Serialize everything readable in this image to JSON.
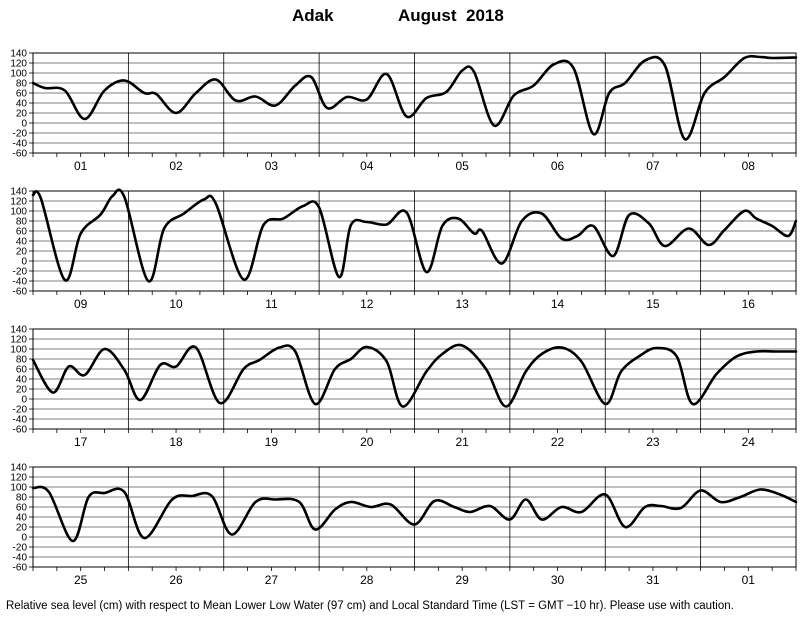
{
  "title": {
    "station": "Adak",
    "period": "August  2018"
  },
  "footnote": "Relative sea level (cm) with respect to Mean Lower Low Water (97 cm) and Local Standard Time (LST = GMT −10 hr). Please use with caution.",
  "chart_data": {
    "type": "line",
    "ylabel": "Relative sea level (cm)",
    "ylim": [
      -60,
      140
    ],
    "yticks": [
      140,
      120,
      100,
      80,
      60,
      40,
      20,
      0,
      -20,
      -40,
      -60
    ],
    "grid": true,
    "x_unit": "hours (LST)",
    "panels": [
      {
        "days": [
          "01",
          "02",
          "03",
          "04",
          "05",
          "06",
          "07",
          "08"
        ],
        "series": [
          {
            "x": [
              0,
              3,
              8,
              13,
              18,
              23,
              28,
              31,
              36,
              41,
              46,
              51,
              56,
              61,
              66,
              70,
              74,
              79,
              84,
              89,
              94,
              99,
              104,
              108,
              111,
              116,
              121,
              126,
              131,
              136,
              141,
              145,
              149,
              154,
              159,
              164,
              169,
              174,
              179,
              183,
              186,
              192
            ],
            "y": [
              80,
              70,
              65,
              8,
              65,
              85,
              60,
              58,
              20,
              60,
              87,
              45,
              53,
              35,
              75,
              92,
              30,
              52,
              47,
              98,
              13,
              50,
              62,
              105,
              102,
              -5,
              55,
              75,
              117,
              110,
              -22,
              60,
              80,
              125,
              115,
              -32,
              60,
              92,
              130,
              132,
              130,
              131
            ]
          }
        ]
      },
      {
        "days": [
          "09",
          "10",
          "11",
          "12",
          "13",
          "14",
          "15",
          "16"
        ],
        "series": [
          {
            "x": [
              0,
              2,
              8,
              12,
              17,
              20,
              23,
              29,
              33,
              38,
              43,
              46,
              53,
              58,
              63,
              68,
              72,
              77,
              80,
              84,
              89,
              94,
              99,
              103,
              107,
              111,
              113,
              118,
              123,
              128,
              133,
              137,
              141,
              146,
              150,
              155,
              159,
              165,
              170,
              174,
              179,
              182,
              186,
              190,
              192
            ],
            "y": [
              132,
              125,
              -38,
              55,
              93,
              130,
              128,
              -40,
              65,
              95,
              123,
              115,
              -37,
              72,
              85,
              110,
              107,
              -32,
              72,
              78,
              73,
              97,
              -22,
              70,
              85,
              55,
              60,
              -5,
              80,
              95,
              45,
              50,
              70,
              10,
              92,
              75,
              30,
              65,
              32,
              62,
              100,
              85,
              70,
              50,
              80
            ]
          }
        ]
      },
      {
        "days": [
          "17",
          "18",
          "19",
          "20",
          "21",
          "22",
          "23",
          "24"
        ],
        "series": [
          {
            "x": [
              0,
              5,
              9,
              13,
              18,
              23,
              27,
              32,
              36,
              41,
              47,
              53,
              57,
              62,
              66,
              71,
              76,
              80,
              84,
              89,
              93,
              99,
              103,
              108,
              114,
              119,
              124,
              128,
              133,
              138,
              144,
              148,
              153,
              157,
              162,
              166,
              172,
              177,
              182,
              187,
              192
            ],
            "y": [
              78,
              13,
              65,
              48,
              100,
              58,
              -2,
              68,
              65,
              103,
              -8,
              60,
              78,
              103,
              95,
              -10,
              60,
              80,
              104,
              75,
              -15,
              55,
              90,
              107,
              60,
              -15,
              55,
              90,
              103,
              75,
              -10,
              55,
              88,
              102,
              85,
              -10,
              50,
              85,
              95,
              95,
              95
            ]
          }
        ]
      },
      {
        "days": [
          "25",
          "26",
          "27",
          "28",
          "29",
          "30",
          "31",
          "01"
        ],
        "series": [
          {
            "x": [
              0,
              4,
              10,
              14,
              18,
              23,
              28,
              35,
              40,
              45,
              50,
              56,
              61,
              67,
              71,
              76,
              80,
              85,
              90,
              96,
              101,
              106,
              110,
              115,
              120,
              124,
              128,
              133,
              138,
              144,
              149,
              154,
              158,
              163,
              168,
              173,
              178,
              183,
              188,
              192
            ],
            "y": [
              98,
              90,
              -8,
              80,
              88,
              90,
              -2,
              75,
              82,
              82,
              5,
              70,
              75,
              70,
              15,
              55,
              70,
              60,
              65,
              25,
              72,
              60,
              50,
              62,
              35,
              75,
              35,
              60,
              50,
              85,
              20,
              60,
              62,
              58,
              93,
              70,
              80,
              95,
              85,
              70
            ]
          }
        ]
      }
    ]
  }
}
